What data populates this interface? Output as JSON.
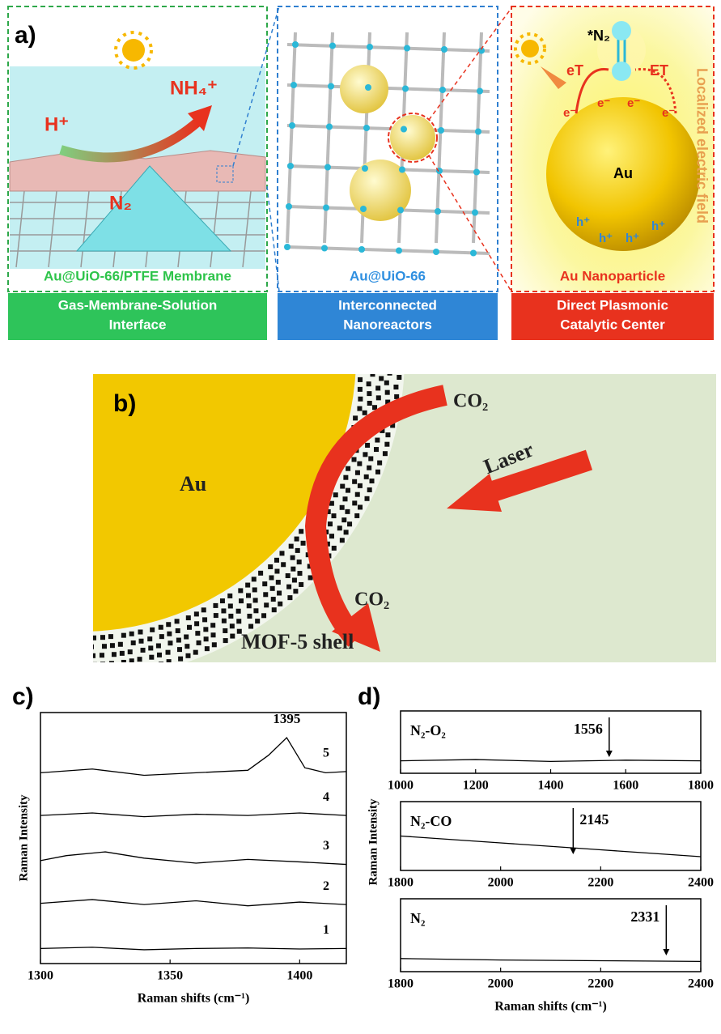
{
  "panel_a": {
    "label": "a)",
    "left": {
      "caption": "Au@UiO-66/PTFE Membrane",
      "banner": [
        "Gas-Membrane-Solution",
        "Interface"
      ],
      "proton": "H⁺",
      "ammonium": "NH₄⁺",
      "nitrogen": "N₂"
    },
    "middle": {
      "caption": "Au@UiO-66",
      "banner": [
        "Interconnected",
        "Nanoreactors"
      ]
    },
    "right": {
      "caption": "Au Nanoparticle",
      "banner": [
        "Direct Plasmonic",
        "Catalytic Center"
      ],
      "adsorbate": "*N₂",
      "transfer_left": "eT",
      "transfer_right": "ET",
      "electrons": [
        "e⁻",
        "e⁻",
        "e⁻",
        "e⁻"
      ],
      "core": "Au",
      "holes": [
        "h⁺",
        "h⁺",
        "h⁺",
        "h⁺"
      ],
      "field": "Localized electric field"
    }
  },
  "panel_b": {
    "label": "b)",
    "core": "Au",
    "gas_in": "CO₂",
    "laser": "Laser",
    "gas_out": "CO₂",
    "shell": "MOF-5 shell"
  },
  "panel_c": {
    "label": "c)"
  },
  "panel_d": {
    "label": "d)",
    "y_label": "Raman Intensity"
  },
  "chart_data": [
    {
      "type": "line",
      "x_label": "Raman shifts (cm⁻¹)",
      "y_label": "Raman Intensity",
      "xlim": [
        1300,
        1418
      ],
      "xticks": [
        1300,
        1350,
        1400
      ],
      "ylim": [
        0,
        10
      ],
      "peaks": [
        1395
      ],
      "series": [
        {
          "name": "1",
          "color": "#000000",
          "x": [
            1300,
            1320,
            1340,
            1360,
            1380,
            1400,
            1418
          ],
          "values": [
            0.6,
            0.65,
            0.55,
            0.6,
            0.62,
            0.58,
            0.6
          ]
        },
        {
          "name": "2",
          "color": "#000000",
          "x": [
            1300,
            1320,
            1340,
            1360,
            1380,
            1400,
            1418
          ],
          "values": [
            2.4,
            2.55,
            2.35,
            2.5,
            2.3,
            2.45,
            2.35
          ]
        },
        {
          "name": "3",
          "color": "#000000",
          "x": [
            1300,
            1310,
            1325,
            1340,
            1360,
            1380,
            1400,
            1418
          ],
          "values": [
            4.1,
            4.3,
            4.45,
            4.2,
            4.0,
            4.15,
            4.05,
            3.95
          ]
        },
        {
          "name": "4",
          "color": "#000000",
          "x": [
            1300,
            1320,
            1340,
            1360,
            1380,
            1400,
            1418
          ],
          "values": [
            5.9,
            6.0,
            5.85,
            5.95,
            5.9,
            6.0,
            5.9
          ]
        },
        {
          "name": "5",
          "color": "#000000",
          "x": [
            1300,
            1320,
            1340,
            1360,
            1380,
            1388,
            1395,
            1402,
            1410,
            1418
          ],
          "values": [
            7.6,
            7.75,
            7.5,
            7.6,
            7.7,
            8.3,
            9.0,
            7.8,
            7.6,
            7.65
          ]
        }
      ]
    },
    {
      "type": "line",
      "xlim": [
        1000,
        1800
      ],
      "xticks": [
        1000,
        1200,
        1400,
        1600,
        1800
      ],
      "ylim": [
        0,
        1
      ],
      "peaks": [
        1556
      ],
      "series": [
        {
          "name": "N₂-O₂",
          "color": "#000000",
          "x": [
            1000,
            1200,
            1400,
            1600,
            1800
          ],
          "values": [
            0.2,
            0.22,
            0.19,
            0.21,
            0.2
          ]
        }
      ]
    },
    {
      "type": "line",
      "xlim": [
        1800,
        2400
      ],
      "xticks": [
        1800,
        2000,
        2200,
        2400
      ],
      "ylim": [
        0,
        1
      ],
      "peaks": [
        2145
      ],
      "series": [
        {
          "name": "N₂-CO",
          "color": "#000000",
          "x": [
            1800,
            1900,
            2000,
            2100,
            2200,
            2300,
            2400
          ],
          "values": [
            0.5,
            0.45,
            0.4,
            0.35,
            0.3,
            0.25,
            0.2
          ]
        }
      ]
    },
    {
      "type": "line",
      "x_label": "Raman shifts (cm⁻¹)",
      "xlim": [
        1800,
        2400
      ],
      "xticks": [
        1800,
        2000,
        2200,
        2400
      ],
      "ylim": [
        0,
        1
      ],
      "peaks": [
        2331
      ],
      "series": [
        {
          "name": "N₂",
          "color": "#000000",
          "x": [
            1800,
            2000,
            2200,
            2400
          ],
          "values": [
            0.18,
            0.16,
            0.15,
            0.14
          ]
        }
      ]
    }
  ]
}
